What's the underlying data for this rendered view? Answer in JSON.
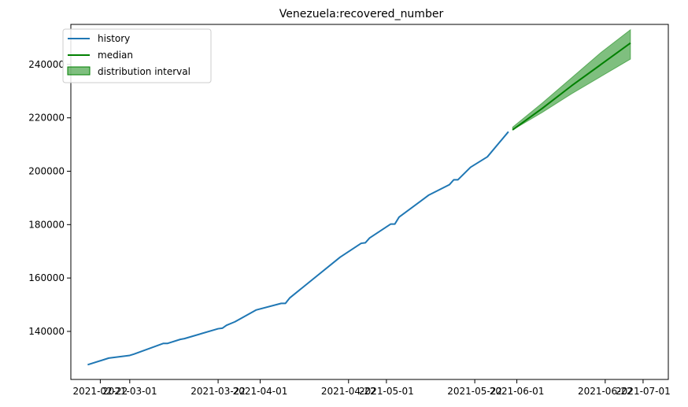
{
  "chart_data": {
    "type": "line",
    "title": "Venezuela:recovered_number",
    "xlabel": "",
    "ylabel": "",
    "x_tick_labels": [
      "2021-02-22",
      "2021-03-01",
      "2021-03-22",
      "2021-04-01",
      "2021-04-22",
      "2021-05-01",
      "2021-05-22",
      "2021-06-01",
      "2021-06-22",
      "2021-07-01"
    ],
    "x_tick_dates": [
      "2021-02-22",
      "2021-03-01",
      "2021-03-22",
      "2021-04-01",
      "2021-04-22",
      "2021-05-01",
      "2021-05-22",
      "2021-06-01",
      "2021-06-22",
      "2021-07-01"
    ],
    "y_ticks": [
      140000,
      160000,
      180000,
      200000,
      220000,
      240000
    ],
    "y_tick_labels": [
      "140000",
      "160000",
      "180000",
      "200000",
      "220000",
      "240000"
    ],
    "xlim": [
      "2021-02-15",
      "2021-07-07"
    ],
    "ylim": [
      122000,
      255000
    ],
    "grid": false,
    "legend_position": "top-left",
    "series": [
      {
        "name": "history",
        "color": "#1f77b4",
        "x": [
          "2021-02-19",
          "2021-02-24",
          "2021-03-01",
          "2021-03-02",
          "2021-03-09",
          "2021-03-10",
          "2021-03-13",
          "2021-03-14",
          "2021-03-22",
          "2021-03-23",
          "2021-03-24",
          "2021-03-26",
          "2021-03-31",
          "2021-04-06",
          "2021-04-07",
          "2021-04-08",
          "2021-04-20",
          "2021-04-25",
          "2021-04-26",
          "2021-04-27",
          "2021-05-02",
          "2021-05-03",
          "2021-05-04",
          "2021-05-10",
          "2021-05-11",
          "2021-05-16",
          "2021-05-17",
          "2021-05-18",
          "2021-05-21",
          "2021-05-25",
          "2021-05-30"
        ],
        "y": [
          127500,
          130000,
          131000,
          131500,
          135500,
          135500,
          137000,
          137300,
          141000,
          141200,
          142300,
          143600,
          148000,
          150500,
          150500,
          152500,
          167800,
          173000,
          173200,
          175000,
          180200,
          180200,
          182800,
          189800,
          191000,
          195000,
          196800,
          196800,
          201500,
          205400,
          214800
        ]
      },
      {
        "name": "median",
        "color": "#008000",
        "x": [
          "2021-05-31",
          "2021-06-07",
          "2021-06-14",
          "2021-06-21",
          "2021-06-28"
        ],
        "y": [
          215500,
          223500,
          232000,
          240000,
          248000
        ]
      }
    ],
    "distribution_interval": {
      "name": "distribution interval",
      "color": "#008000",
      "x": [
        "2021-05-31",
        "2021-06-07",
        "2021-06-14",
        "2021-06-21",
        "2021-06-28"
      ],
      "lower": [
        215500,
        222000,
        229000,
        235500,
        242000
      ],
      "upper": [
        216500,
        225500,
        235000,
        244500,
        253000
      ]
    }
  }
}
